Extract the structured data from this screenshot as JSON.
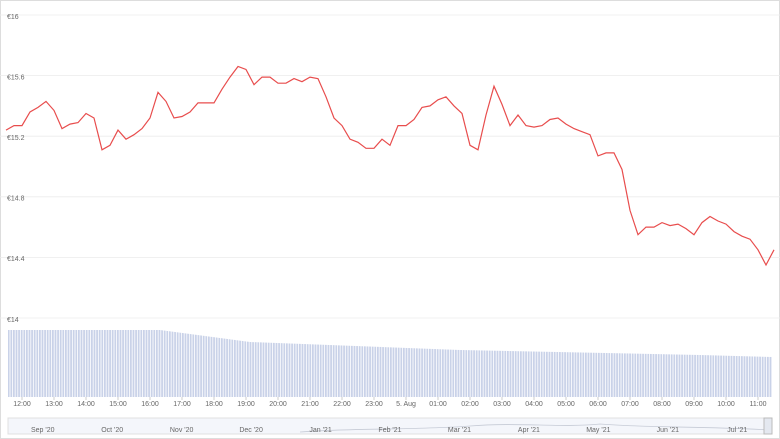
{
  "chart_data": {
    "type": "line",
    "x": [
      -0.5,
      -0.25,
      0,
      0.25,
      0.5,
      0.75,
      1,
      1.25,
      1.5,
      1.75,
      2,
      2.25,
      2.5,
      2.75,
      3,
      3.25,
      3.5,
      3.75,
      4,
      4.25,
      4.5,
      4.75,
      5,
      5.25,
      5.5,
      5.75,
      6,
      6.25,
      6.5,
      6.75,
      7,
      7.25,
      7.5,
      7.75,
      8,
      8.25,
      8.5,
      8.75,
      9,
      9.25,
      9.5,
      9.75,
      10,
      10.25,
      10.5,
      10.75,
      11,
      11.25,
      11.5,
      11.75,
      12,
      12.25,
      12.5,
      12.75,
      13,
      13.25,
      13.5,
      13.75,
      14,
      14.25,
      14.5,
      14.75,
      15,
      15.25,
      15.5,
      15.75,
      16,
      16.25,
      16.5,
      16.75,
      17,
      17.25,
      17.5,
      17.75,
      18,
      18.25,
      18.5,
      18.75,
      19,
      19.25,
      19.5,
      19.75,
      20,
      20.25,
      20.5,
      20.75,
      21,
      21.25,
      21.5,
      21.75,
      22,
      22.25,
      22.5,
      22.75,
      23,
      23.25,
      23.5
    ],
    "series": [
      {
        "color": "#e84d4d",
        "values": [
          15.24,
          15.27,
          15.27,
          15.36,
          15.39,
          15.43,
          15.37,
          15.25,
          15.28,
          15.29,
          15.35,
          15.32,
          15.11,
          15.14,
          15.24,
          15.18,
          15.21,
          15.25,
          15.32,
          15.49,
          15.43,
          15.32,
          15.33,
          15.36,
          15.42,
          15.42,
          15.42,
          15.51,
          15.59,
          15.66,
          15.64,
          15.54,
          15.59,
          15.59,
          15.55,
          15.55,
          15.58,
          15.56,
          15.59,
          15.58,
          15.46,
          15.32,
          15.27,
          15.18,
          15.16,
          15.12,
          15.12,
          15.18,
          15.14,
          15.27,
          15.27,
          15.31,
          15.39,
          15.4,
          15.44,
          15.46,
          15.4,
          15.35,
          15.14,
          15.11,
          15.34,
          15.53,
          15.41,
          15.27,
          15.34,
          15.27,
          15.26,
          15.27,
          15.31,
          15.32,
          15.28,
          15.25,
          15.23,
          15.21,
          15.07,
          15.09,
          15.09,
          14.98,
          14.71,
          14.55,
          14.6,
          14.6,
          14.63,
          14.61,
          14.62,
          14.59,
          14.55,
          14.63,
          14.67,
          14.64,
          14.62,
          14.57,
          14.54,
          14.52,
          14.45,
          14.35,
          14.45
        ]
      }
    ],
    "xlim": [
      -0.5,
      23.5
    ],
    "xticks": [
      {
        "value": 0,
        "label": "12:00"
      },
      {
        "value": 1,
        "label": "13:00"
      },
      {
        "value": 2,
        "label": "14:00"
      },
      {
        "value": 3,
        "label": "15:00"
      },
      {
        "value": 4,
        "label": "16:00"
      },
      {
        "value": 5,
        "label": "17:00"
      },
      {
        "value": 6,
        "label": "18:00"
      },
      {
        "value": 7,
        "label": "19:00"
      },
      {
        "value": 8,
        "label": "20:00"
      },
      {
        "value": 9,
        "label": "21:00"
      },
      {
        "value": 10,
        "label": "22:00"
      },
      {
        "value": 11,
        "label": "23:00"
      },
      {
        "value": 12,
        "label": "5. Aug"
      },
      {
        "value": 13,
        "label": "01:00"
      },
      {
        "value": 14,
        "label": "02:00"
      },
      {
        "value": 15,
        "label": "03:00"
      },
      {
        "value": 16,
        "label": "04:00"
      },
      {
        "value": 17,
        "label": "05:00"
      },
      {
        "value": 18,
        "label": "06:00"
      },
      {
        "value": 19,
        "label": "07:00"
      },
      {
        "value": 20,
        "label": "08:00"
      },
      {
        "value": 21,
        "label": "09:00"
      },
      {
        "value": 22,
        "label": "10:00"
      },
      {
        "value": 23,
        "label": "11:00"
      }
    ],
    "ylim": [
      14,
      16
    ],
    "yticks": [
      {
        "value": 16,
        "label": "€16"
      },
      {
        "value": 15.6,
        "label": "€15.6"
      },
      {
        "value": 15.2,
        "label": "€15.2"
      },
      {
        "value": 14.8,
        "label": "€14.8"
      },
      {
        "value": 14.4,
        "label": "€14.4"
      },
      {
        "value": 14,
        "label": "€14"
      }
    ],
    "grid": true,
    "navigator": [
      "Sep '20",
      "Oct '20",
      "Nov '20",
      "Dec '20",
      "Jan '21",
      "Feb '21",
      "Mar '21",
      "Apr '21",
      "May '21",
      "Jun '21",
      "Jul '21"
    ]
  }
}
